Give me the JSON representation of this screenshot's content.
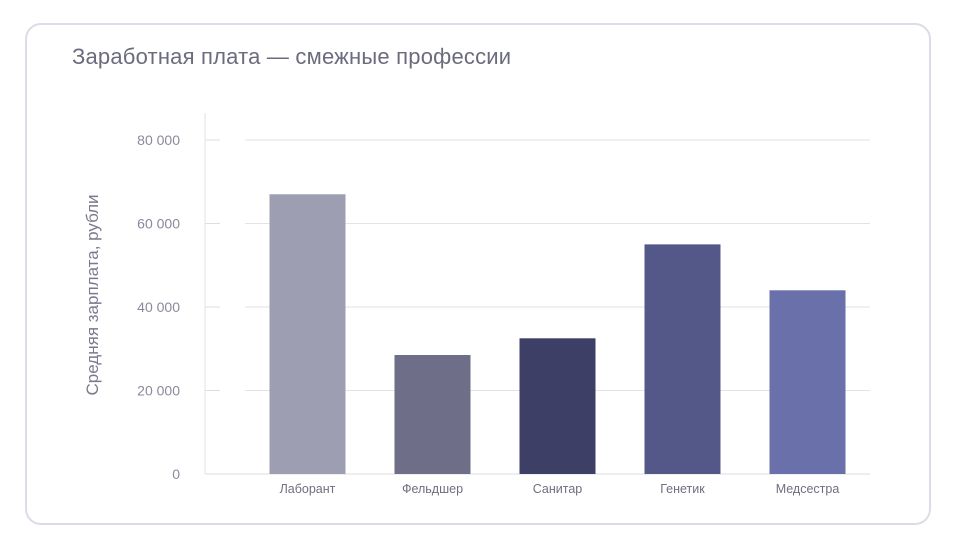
{
  "title": "Заработная плата — смежные профессии",
  "chart_data": {
    "type": "bar",
    "title": "Заработная плата — смежные профессии",
    "xlabel": "",
    "ylabel": "Средняя зарплата, рубли",
    "categories": [
      "Лаборант",
      "Фельдшер",
      "Санитар",
      "Генетик",
      "Медсестра"
    ],
    "values": [
      67000,
      28500,
      32500,
      55000,
      44000
    ],
    "colors": [
      "#9e9eb2",
      "#6e6e88",
      "#3d3f66",
      "#535889",
      "#6970aa"
    ],
    "ylim": [
      0,
      80000
    ],
    "yticks": [
      0,
      20000,
      40000,
      60000,
      80000
    ],
    "ytick_labels": [
      "0",
      "20 000",
      "40 000",
      "60 000",
      "80 000"
    ],
    "grid": true,
    "legend": "none"
  }
}
